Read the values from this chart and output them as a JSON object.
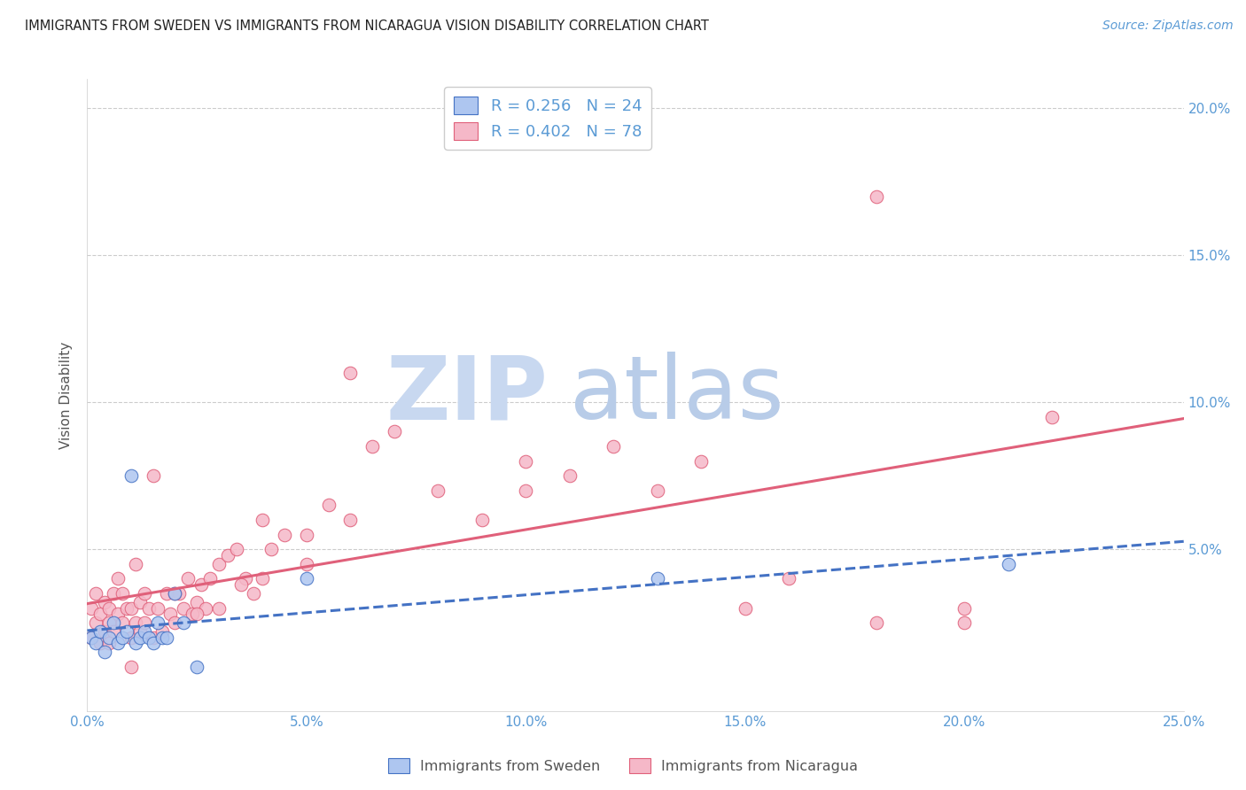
{
  "title": "IMMIGRANTS FROM SWEDEN VS IMMIGRANTS FROM NICARAGUA VISION DISABILITY CORRELATION CHART",
  "source": "Source: ZipAtlas.com",
  "ylabel": "Vision Disability",
  "xlim": [
    0.0,
    0.25
  ],
  "ylim": [
    -0.005,
    0.21
  ],
  "xticks": [
    0.0,
    0.05,
    0.1,
    0.15,
    0.2,
    0.25
  ],
  "yticks": [
    0.0,
    0.05,
    0.1,
    0.15,
    0.2
  ],
  "xticklabels": [
    "0.0%",
    "5.0%",
    "10.0%",
    "15.0%",
    "20.0%",
    "25.0%"
  ],
  "yticklabels_left": [
    "",
    "",
    "",
    "",
    ""
  ],
  "yticklabels_right": [
    "",
    "5.0%",
    "10.0%",
    "15.0%",
    "20.0%"
  ],
  "sweden_fill_color": "#aec6f0",
  "sweden_edge_color": "#4472c4",
  "nicaragua_fill_color": "#f5b8c8",
  "nicaragua_edge_color": "#e0607a",
  "sweden_line_color": "#4472c4",
  "nicaragua_line_color": "#e0607a",
  "R_sweden": "0.256",
  "N_sweden": "24",
  "R_nicaragua": "0.402",
  "N_nicaragua": "78",
  "sweden_x": [
    0.001,
    0.002,
    0.003,
    0.004,
    0.005,
    0.006,
    0.007,
    0.008,
    0.009,
    0.01,
    0.011,
    0.012,
    0.013,
    0.014,
    0.015,
    0.016,
    0.017,
    0.018,
    0.02,
    0.022,
    0.025,
    0.05,
    0.13,
    0.21
  ],
  "sweden_y": [
    0.02,
    0.018,
    0.022,
    0.015,
    0.02,
    0.025,
    0.018,
    0.02,
    0.022,
    0.075,
    0.018,
    0.02,
    0.022,
    0.02,
    0.018,
    0.025,
    0.02,
    0.02,
    0.035,
    0.025,
    0.01,
    0.04,
    0.04,
    0.045
  ],
  "nicaragua_x": [
    0.001,
    0.001,
    0.002,
    0.002,
    0.003,
    0.003,
    0.004,
    0.004,
    0.005,
    0.005,
    0.006,
    0.006,
    0.007,
    0.007,
    0.008,
    0.008,
    0.009,
    0.01,
    0.01,
    0.011,
    0.011,
    0.012,
    0.012,
    0.013,
    0.013,
    0.014,
    0.015,
    0.015,
    0.016,
    0.017,
    0.018,
    0.019,
    0.02,
    0.021,
    0.022,
    0.023,
    0.024,
    0.025,
    0.026,
    0.027,
    0.028,
    0.03,
    0.032,
    0.034,
    0.036,
    0.038,
    0.04,
    0.042,
    0.045,
    0.05,
    0.055,
    0.06,
    0.065,
    0.07,
    0.08,
    0.09,
    0.1,
    0.11,
    0.12,
    0.13,
    0.14,
    0.16,
    0.18,
    0.2,
    0.22,
    0.02,
    0.025,
    0.03,
    0.035,
    0.04,
    0.05,
    0.06,
    0.1,
    0.15,
    0.18,
    0.2,
    0.005,
    0.01
  ],
  "nicaragua_y": [
    0.02,
    0.03,
    0.025,
    0.035,
    0.018,
    0.028,
    0.022,
    0.032,
    0.025,
    0.03,
    0.022,
    0.035,
    0.028,
    0.04,
    0.025,
    0.035,
    0.03,
    0.02,
    0.03,
    0.025,
    0.045,
    0.022,
    0.032,
    0.025,
    0.035,
    0.03,
    0.02,
    0.075,
    0.03,
    0.022,
    0.035,
    0.028,
    0.025,
    0.035,
    0.03,
    0.04,
    0.028,
    0.032,
    0.038,
    0.03,
    0.04,
    0.045,
    0.048,
    0.05,
    0.04,
    0.035,
    0.04,
    0.05,
    0.055,
    0.055,
    0.065,
    0.06,
    0.085,
    0.09,
    0.07,
    0.06,
    0.07,
    0.075,
    0.085,
    0.07,
    0.08,
    0.04,
    0.17,
    0.03,
    0.095,
    0.035,
    0.028,
    0.03,
    0.038,
    0.06,
    0.045,
    0.11,
    0.08,
    0.03,
    0.025,
    0.025,
    0.018,
    0.01
  ],
  "background_color": "#ffffff",
  "grid_color": "#cccccc",
  "title_color": "#222222",
  "axis_tick_color": "#5b9bd5",
  "legend_label_color": "#5b9bd5",
  "watermark_zip_color": "#c8d8f0",
  "watermark_atlas_color": "#c8d8f0",
  "bottom_legend_label": [
    "Immigrants from Sweden",
    "Immigrants from Nicaragua"
  ]
}
